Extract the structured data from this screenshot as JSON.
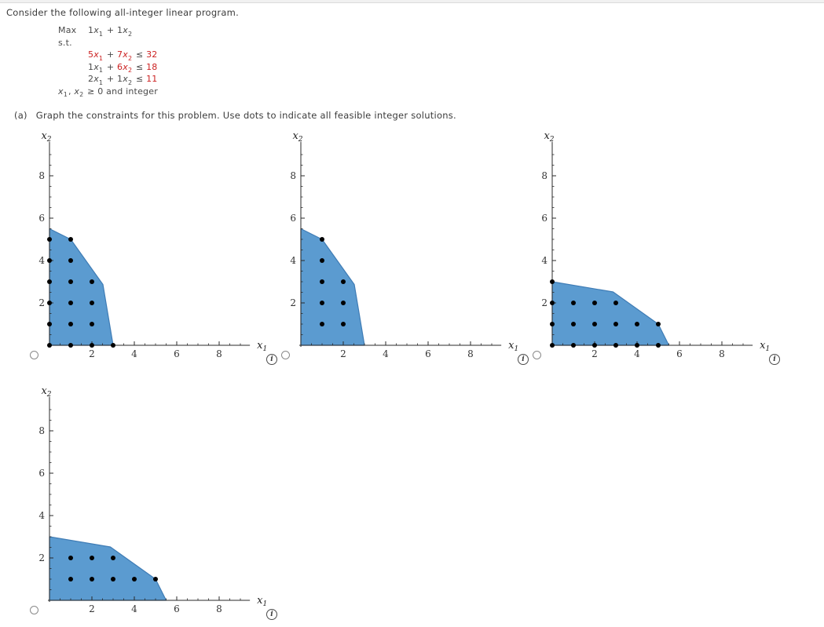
{
  "header": {
    "title": "Consider the following all-integer linear program."
  },
  "program": {
    "max_label": "Max",
    "st_label": "s.t.",
    "objective": [
      {
        "t": "1",
        "v": "x",
        "s": "1"
      },
      {
        "t": " + "
      },
      {
        "t": "1",
        "v": "x",
        "s": "2"
      }
    ],
    "constraints": [
      [
        {
          "t": "5",
          "v": "x",
          "s": "1",
          "r": true
        },
        {
          "t": " + "
        },
        {
          "t": "7",
          "v": "x",
          "s": "2",
          "r": true
        },
        {
          "t": " ≤ "
        },
        {
          "t": "32",
          "r": true
        }
      ],
      [
        {
          "t": "1",
          "v": "x",
          "s": "1"
        },
        {
          "t": " + "
        },
        {
          "t": "6",
          "v": "x",
          "s": "2",
          "r": true
        },
        {
          "t": " ≤ "
        },
        {
          "t": "18",
          "r": true
        }
      ],
      [
        {
          "t": "2",
          "v": "x",
          "s": "1"
        },
        {
          "t": " + "
        },
        {
          "t": "1",
          "v": "x",
          "s": "2"
        },
        {
          "t": " ≤ "
        },
        {
          "t": "11",
          "r": true
        }
      ]
    ],
    "nonneg": [
      {
        "v": "x",
        "s": "1"
      },
      {
        "t": ", "
      },
      {
        "v": "x",
        "s": "2"
      },
      {
        "t": " ≥ 0 and integer"
      }
    ]
  },
  "part_a": {
    "label": "(a)",
    "text": "Graph the constraints for this problem. Use dots to indicate all feasible integer solutions."
  },
  "colors": {
    "region_fill": "#5B9BD0",
    "region_edge": "#3F7CB5",
    "dot": "#000000",
    "axis": "#2a2a2a",
    "red_text": "#cc2222",
    "body_text": "#4a4a4a"
  },
  "chart_data": {
    "type": "area",
    "note": "feasible-region plots with integer-solution dots",
    "axis": {
      "x_label": "x",
      "x_label_sub": "1",
      "y_label": "x",
      "y_label_sub": "2",
      "major_ticks": [
        2,
        4,
        6,
        8
      ],
      "minor_step": 0.5,
      "tick_max": 9,
      "x_axis_end": 9.45,
      "y_axis_end": 9.6,
      "xlim": [
        0,
        9.5
      ],
      "ylim": [
        0,
        9.5
      ]
    },
    "graphs": [
      {
        "name": "option-1",
        "region": [
          [
            0,
            0
          ],
          [
            0,
            5.5
          ],
          [
            1,
            5
          ],
          [
            2.52,
            2.87
          ],
          [
            3,
            0
          ]
        ],
        "dots": [
          [
            0,
            0
          ],
          [
            1,
            0
          ],
          [
            2,
            0
          ],
          [
            3,
            0
          ],
          [
            0,
            1
          ],
          [
            1,
            1
          ],
          [
            2,
            1
          ],
          [
            0,
            2
          ],
          [
            1,
            2
          ],
          [
            2,
            2
          ],
          [
            0,
            3
          ],
          [
            1,
            3
          ],
          [
            2,
            3
          ],
          [
            0,
            4
          ],
          [
            1,
            4
          ],
          [
            0,
            5
          ],
          [
            1,
            5
          ]
        ]
      },
      {
        "name": "option-2",
        "region": [
          [
            0,
            0
          ],
          [
            0,
            5.5
          ],
          [
            1,
            5
          ],
          [
            2.52,
            2.87
          ],
          [
            3,
            0
          ]
        ],
        "dots": [
          [
            1,
            1
          ],
          [
            2,
            1
          ],
          [
            1,
            2
          ],
          [
            2,
            2
          ],
          [
            1,
            3
          ],
          [
            2,
            3
          ],
          [
            1,
            4
          ],
          [
            1,
            5
          ]
        ]
      },
      {
        "name": "option-3",
        "region": [
          [
            0,
            0
          ],
          [
            0,
            3
          ],
          [
            2.87,
            2.52
          ],
          [
            5,
            1
          ],
          [
            5.5,
            0
          ]
        ],
        "dots": [
          [
            0,
            0
          ],
          [
            1,
            0
          ],
          [
            2,
            0
          ],
          [
            3,
            0
          ],
          [
            4,
            0
          ],
          [
            5,
            0
          ],
          [
            0,
            1
          ],
          [
            1,
            1
          ],
          [
            2,
            1
          ],
          [
            3,
            1
          ],
          [
            4,
            1
          ],
          [
            5,
            1
          ],
          [
            0,
            2
          ],
          [
            1,
            2
          ],
          [
            2,
            2
          ],
          [
            3,
            2
          ],
          [
            0,
            3
          ]
        ]
      },
      {
        "name": "option-4",
        "region": [
          [
            0,
            0
          ],
          [
            0,
            3
          ],
          [
            2.87,
            2.52
          ],
          [
            5,
            1
          ],
          [
            5.5,
            0
          ]
        ],
        "dots": [
          [
            1,
            1
          ],
          [
            2,
            1
          ],
          [
            3,
            1
          ],
          [
            4,
            1
          ],
          [
            5,
            1
          ],
          [
            1,
            2
          ],
          [
            2,
            2
          ],
          [
            3,
            2
          ]
        ]
      }
    ]
  },
  "options_ui": {
    "radio_group": "graph-choice",
    "info_glyph": "i"
  }
}
